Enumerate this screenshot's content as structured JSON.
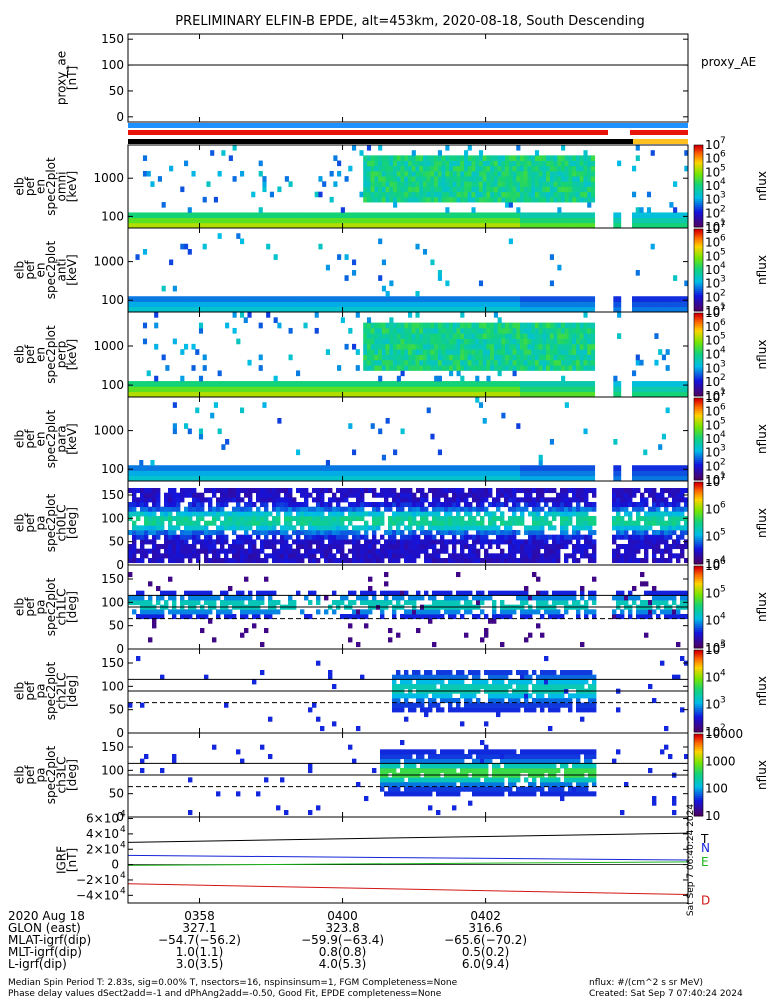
{
  "title": "PRELIMINARY ELFIN-B EPDE, alt=453km, 2020-08-18, South Descending",
  "colors": {
    "blue_bar": "#1e90ff",
    "red_bar": "#e8140c",
    "black_bar": "#000000",
    "orange_bar": "#ffc020",
    "T": "#000000",
    "N": "#1424d6",
    "E": "#19b419",
    "D": "#d21414"
  },
  "chart_data": [
    {
      "type": "line",
      "name": "proxy_ae",
      "ylabel": [
        "proxy_ae",
        "[nT]"
      ],
      "yticks": [
        0,
        50,
        100,
        150
      ],
      "ylim": [
        -10,
        160
      ],
      "x_range_minutes": [
        0,
        7.83
      ],
      "series": [
        {
          "name": "proxy_AE",
          "values": [
            100,
            100
          ]
        }
      ],
      "legend": "proxy_AE"
    },
    {
      "type": "heatmap",
      "name": "energy-omni",
      "ylabel": [
        "elb",
        "pef",
        "en",
        "spec2plot",
        "omni",
        "[keV]"
      ],
      "yticks": [
        "100",
        "1000"
      ],
      "colorbar": {
        "ticks": [
          "10",
          "10",
          "10",
          "10",
          "10",
          "10",
          "10"
        ],
        "exp": [
          "1",
          "2",
          "3",
          "4",
          "5",
          "6",
          "7"
        ],
        "label": "nflux"
      }
    },
    {
      "type": "heatmap",
      "name": "energy-anti",
      "ylabel": [
        "elb",
        "pef",
        "en",
        "spec2plot",
        "anti",
        "[keV]"
      ],
      "yticks": [
        "100",
        "1000"
      ],
      "colorbar": {
        "ticks": [
          "10",
          "10",
          "10",
          "10",
          "10",
          "10",
          "10"
        ],
        "exp": [
          "1",
          "2",
          "3",
          "4",
          "5",
          "6",
          "7"
        ],
        "label": "nflux"
      }
    },
    {
      "type": "heatmap",
      "name": "energy-perp",
      "ylabel": [
        "elb",
        "pef",
        "en",
        "spec2plot",
        "perp",
        "[keV]"
      ],
      "yticks": [
        "100",
        "1000"
      ],
      "colorbar": {
        "ticks": [
          "10",
          "10",
          "10",
          "10",
          "10",
          "10",
          "10"
        ],
        "exp": [
          "1",
          "2",
          "3",
          "4",
          "5",
          "6",
          "7"
        ],
        "label": "nflux"
      }
    },
    {
      "type": "heatmap",
      "name": "energy-para",
      "ylabel": [
        "elb",
        "pef",
        "en",
        "spec2plot",
        "para",
        "[keV]"
      ],
      "yticks": [
        "100",
        "1000"
      ],
      "colorbar": {
        "ticks": [
          "10",
          "10",
          "10",
          "10",
          "10",
          "10",
          "10"
        ],
        "exp": [
          "1",
          "2",
          "3",
          "4",
          "5",
          "6",
          "7"
        ],
        "label": "nflux"
      }
    },
    {
      "type": "heatmap",
      "name": "pitch-ch0",
      "ylabel": [
        "elb",
        "pef",
        "pa",
        "spec2plot",
        "ch0LC",
        "[deg]"
      ],
      "yticks": [
        "0",
        "50",
        "100",
        "150"
      ],
      "ylim": [
        0,
        180
      ],
      "colorbar": {
        "ticks": [
          "10",
          "10",
          "10",
          "10"
        ],
        "exp": [
          "4",
          "5",
          "6",
          "7"
        ],
        "label": "nflux"
      }
    },
    {
      "type": "heatmap",
      "name": "pitch-ch1",
      "ylabel": [
        "elb",
        "pef",
        "pa",
        "spec2plot",
        "ch1LC",
        "[deg]"
      ],
      "yticks": [
        "0",
        "50",
        "100",
        "150"
      ],
      "ylim": [
        0,
        180
      ],
      "colorbar": {
        "ticks": [
          "10",
          "10",
          "10",
          "10"
        ],
        "exp": [
          "3",
          "4",
          "5",
          "6"
        ],
        "label": "nflux"
      }
    },
    {
      "type": "heatmap",
      "name": "pitch-ch2",
      "ylabel": [
        "elb",
        "pef",
        "pa",
        "spec2plot",
        "ch2LC",
        "[deg]"
      ],
      "yticks": [
        "0",
        "50",
        "100",
        "150"
      ],
      "ylim": [
        0,
        180
      ],
      "colorbar": {
        "ticks": [
          "10",
          "10",
          "10",
          "10"
        ],
        "exp": [
          "2",
          "3",
          "4",
          "5"
        ],
        "label": "nflux"
      }
    },
    {
      "type": "heatmap",
      "name": "pitch-ch3",
      "ylabel": [
        "elb",
        "pef",
        "pa",
        "spec2plot",
        "ch3LC",
        "[deg]"
      ],
      "yticks": [
        "0",
        "50",
        "100",
        "150"
      ],
      "ylim": [
        0,
        180
      ],
      "colorbar": {
        "ticks": [
          "10",
          "100",
          "1000",
          "10000"
        ],
        "exp": [],
        "label": "nflux"
      }
    },
    {
      "type": "line",
      "name": "igrf",
      "ylabel": [
        "IGRF",
        "[nT]"
      ],
      "yticks": [
        "−4×10",
        "−2×10",
        "0",
        "2×10",
        "4×10",
        "6×10"
      ],
      "yexp": [
        "4",
        "4",
        "",
        "4",
        "4",
        "4"
      ],
      "ylim": [
        -50000,
        62000
      ],
      "series": [
        {
          "name": "T",
          "values": [
            29000,
            41000
          ]
        },
        {
          "name": "N",
          "values": [
            12000,
            6000
          ]
        },
        {
          "name": "E",
          "values": [
            -1000,
            3500
          ]
        },
        {
          "name": "D",
          "values": [
            -25000,
            -39000
          ]
        }
      ],
      "stamp": "Sat Sep  7 06:40:24 2024"
    }
  ],
  "xaxis": {
    "ticks": [
      "0358",
      "0400",
      "0402"
    ],
    "tick_minutes": [
      1,
      3,
      5
    ],
    "rows": [
      {
        "label": "2020 Aug 18",
        "values": [
          "0358",
          "0400",
          "0402"
        ]
      },
      {
        "label": "GLON (east)",
        "values": [
          "327.1",
          "323.8",
          "316.6"
        ]
      },
      {
        "label": "MLAT-igrf(dip)",
        "values": [
          "−54.7(−56.2)",
          "−59.9(−63.4)",
          "−65.6(−70.2)"
        ]
      },
      {
        "label": "MLT-igrf(dip)",
        "values": [
          "1.0(1.1)",
          "0.8(0.8)",
          "0.5(0.2)"
        ]
      },
      {
        "label": "L-igrf(dip)",
        "values": [
          "3.0(3.5)",
          "4.0(5.3)",
          "6.0(9.4)"
        ]
      }
    ]
  },
  "footer": {
    "line1_left": "Median Spin Period T: 2.83s, sig=0.00% T, nsectors=16, nspinsinsum=1, FGM Completeness=None",
    "line2_left": "Phase delay values dSect2add=-1 and dPhAng2add=-0.50, Good Fit, EPDE completeness=None",
    "line1_right": "nflux: #/(cm^2 s sr MeV)",
    "line2_right": "Created: Sat Sep  7 07:40:24 2024"
  }
}
